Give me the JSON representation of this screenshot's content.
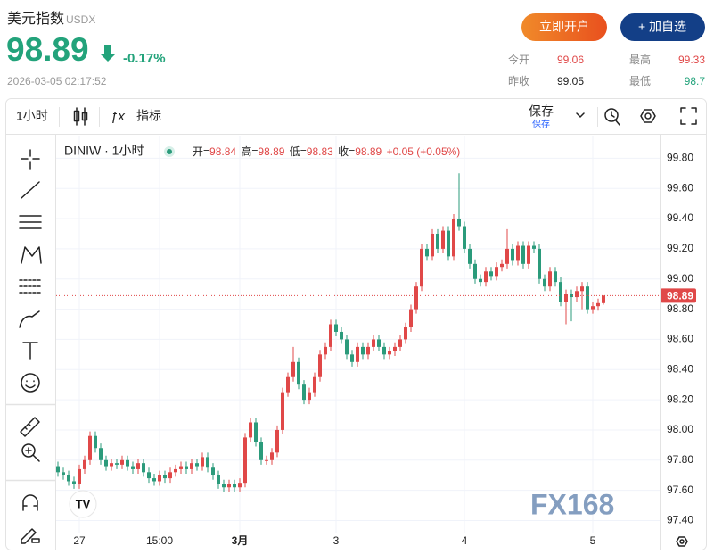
{
  "header": {
    "title": "美元指数",
    "code": "USDX",
    "price": 98.89,
    "change": "-0.17%",
    "time": "2026-03-05 02:17:52",
    "color": "#23a37b"
  },
  "buttons": [
    {
      "label": "立即开户"
    },
    {
      "label": "+ 加自选"
    }
  ],
  "stats": [
    {
      "label": "今开",
      "value": 99.06,
      "color": "#e04848"
    },
    {
      "label": "最高",
      "value": 99.33,
      "color": "#e04848"
    },
    {
      "label": "昨收",
      "value": 99.05,
      "color": "#222222"
    },
    {
      "label": "最低",
      "value": 98.7,
      "color": "#23a37b"
    }
  ],
  "toolbar": {
    "interval": "1小时",
    "indicators": "指标",
    "save": "保存",
    "save_sub": "保存"
  },
  "chart_data": {
    "type": "candlestick",
    "symbol": "DINIW · 1小时",
    "legend": {
      "open_label": "开=",
      "high_label": "高=",
      "low_label": "低=",
      "close_label": "收=",
      "change": "+0.05 (+0.05%)"
    },
    "up_color": "#e04848",
    "down_color": "#2b9b7b",
    "categories": [
      null,
      null,
      null,
      null,
      "27",
      null,
      null,
      null,
      null,
      null,
      null,
      null,
      null,
      null,
      null,
      null,
      null,
      null,
      null,
      "15:00",
      null,
      null,
      null,
      null,
      null,
      null,
      null,
      null,
      null,
      null,
      null,
      null,
      null,
      null,
      "3月",
      null,
      null,
      null,
      null,
      null,
      null,
      null,
      null,
      null,
      null,
      null,
      null,
      null,
      null,
      null,
      null,
      null,
      "3",
      null,
      null,
      null,
      null,
      null,
      null,
      null,
      null,
      null,
      null,
      null,
      null,
      null,
      null,
      null,
      null,
      null,
      null,
      null,
      null,
      null,
      null,
      null,
      "4",
      null,
      null,
      null,
      null,
      null,
      null,
      null,
      null,
      null,
      null,
      null,
      null,
      null,
      null,
      null,
      null,
      null,
      null,
      null,
      null,
      null,
      null,
      null,
      "5",
      null,
      null
    ],
    "open": [
      97.76,
      97.72,
      97.7,
      97.66,
      97.64,
      97.74,
      97.8,
      97.96,
      97.88,
      97.8,
      97.76,
      97.78,
      97.77,
      97.8,
      97.76,
      97.74,
      97.78,
      97.72,
      97.68,
      97.66,
      97.7,
      97.68,
      97.72,
      97.74,
      97.76,
      97.74,
      97.78,
      97.76,
      97.82,
      97.75,
      97.7,
      97.64,
      97.62,
      97.64,
      97.62,
      97.65,
      97.95,
      98.05,
      97.92,
      97.8,
      97.8,
      97.85,
      98.0,
      98.25,
      98.35,
      98.45,
      98.3,
      98.2,
      98.25,
      98.35,
      98.5,
      98.55,
      98.7,
      98.65,
      98.6,
      98.5,
      98.45,
      98.55,
      98.5,
      98.55,
      98.6,
      98.55,
      98.5,
      98.52,
      98.55,
      98.6,
      98.68,
      98.8,
      98.95,
      99.2,
      99.15,
      99.3,
      99.2,
      99.32,
      99.15,
      99.4,
      99.35,
      99.2,
      99.1,
      99.0,
      98.98,
      99.05,
      99.02,
      99.08,
      99.1,
      99.2,
      99.12,
      99.22,
      99.1,
      99.22,
      99.2,
      99.0,
      98.95,
      99.05,
      98.98,
      98.85,
      98.9,
      98.88,
      98.92,
      98.95,
      98.8,
      98.82,
      98.84
    ],
    "high": [
      97.79,
      97.75,
      97.73,
      97.69,
      97.77,
      97.83,
      97.99,
      97.99,
      97.91,
      97.83,
      97.81,
      97.81,
      97.83,
      97.83,
      97.79,
      97.81,
      97.81,
      97.75,
      97.71,
      97.73,
      97.73,
      97.75,
      97.77,
      97.79,
      97.79,
      97.81,
      97.81,
      97.85,
      97.85,
      97.78,
      97.73,
      97.67,
      97.67,
      97.67,
      97.68,
      97.98,
      98.08,
      98.08,
      97.95,
      97.83,
      97.88,
      98.03,
      98.28,
      98.38,
      98.55,
      98.48,
      98.33,
      98.28,
      98.38,
      98.53,
      98.58,
      98.73,
      98.73,
      98.68,
      98.63,
      98.53,
      98.58,
      98.58,
      98.58,
      98.63,
      98.63,
      98.58,
      98.55,
      98.58,
      98.63,
      98.71,
      98.83,
      98.98,
      99.23,
      99.23,
      99.33,
      99.33,
      99.35,
      99.35,
      99.43,
      99.7,
      99.38,
      99.23,
      99.13,
      99.03,
      99.08,
      99.08,
      99.11,
      99.13,
      99.33,
      99.23,
      99.25,
      99.25,
      99.25,
      99.25,
      99.23,
      99.03,
      99.08,
      99.08,
      99.01,
      98.93,
      98.93,
      98.95,
      98.98,
      98.98,
      98.85,
      98.87,
      98.89
    ],
    "low": [
      97.69,
      97.67,
      97.63,
      97.61,
      97.61,
      97.71,
      97.77,
      97.85,
      97.77,
      97.73,
      97.73,
      97.74,
      97.74,
      97.73,
      97.71,
      97.71,
      97.69,
      97.65,
      97.63,
      97.63,
      97.65,
      97.65,
      97.69,
      97.71,
      97.71,
      97.71,
      97.73,
      97.73,
      97.72,
      97.67,
      97.61,
      97.59,
      97.59,
      97.59,
      97.59,
      97.62,
      97.92,
      97.89,
      97.77,
      97.77,
      97.77,
      97.82,
      97.97,
      98.22,
      98.32,
      98.27,
      98.17,
      98.17,
      98.22,
      98.32,
      98.47,
      98.52,
      98.62,
      98.57,
      98.47,
      98.42,
      98.42,
      98.47,
      98.47,
      98.52,
      98.52,
      98.47,
      98.47,
      98.49,
      98.52,
      98.57,
      98.65,
      98.77,
      98.92,
      99.12,
      99.12,
      99.17,
      99.17,
      99.12,
      99.12,
      99.32,
      99.17,
      99.07,
      98.97,
      98.95,
      98.95,
      98.99,
      98.99,
      99.05,
      99.07,
      99.09,
      99.09,
      99.07,
      99.07,
      99.17,
      98.97,
      98.92,
      98.92,
      98.95,
      98.82,
      98.7,
      98.72,
      98.85,
      98.8,
      98.77,
      98.77,
      98.79,
      98.83
    ],
    "close": [
      97.72,
      97.7,
      97.66,
      97.64,
      97.74,
      97.8,
      97.96,
      97.88,
      97.8,
      97.76,
      97.78,
      97.77,
      97.8,
      97.76,
      97.74,
      97.78,
      97.72,
      97.68,
      97.66,
      97.7,
      97.68,
      97.72,
      97.74,
      97.76,
      97.74,
      97.78,
      97.76,
      97.82,
      97.75,
      97.7,
      97.64,
      97.62,
      97.64,
      97.62,
      97.65,
      97.95,
      98.05,
      97.92,
      97.8,
      97.8,
      97.85,
      98.0,
      98.25,
      98.35,
      98.45,
      98.3,
      98.2,
      98.25,
      98.35,
      98.5,
      98.55,
      98.7,
      98.65,
      98.6,
      98.5,
      98.45,
      98.55,
      98.5,
      98.55,
      98.6,
      98.55,
      98.5,
      98.52,
      98.55,
      98.6,
      98.68,
      98.8,
      98.95,
      99.2,
      99.15,
      99.3,
      99.2,
      99.32,
      99.15,
      99.4,
      99.35,
      99.2,
      99.1,
      99.0,
      98.98,
      99.05,
      99.02,
      99.08,
      99.1,
      99.2,
      99.12,
      99.22,
      99.1,
      99.22,
      99.2,
      99.0,
      98.95,
      99.05,
      98.98,
      98.85,
      98.9,
      98.88,
      98.92,
      98.95,
      98.8,
      98.82,
      98.84,
      98.89
    ],
    "ylim": [
      97.32,
      99.95
    ],
    "yticks": [
      {
        "value": 97.4,
        "label": "97.40"
      },
      {
        "value": 97.6,
        "label": "97.60"
      },
      {
        "value": 97.8,
        "label": "97.80"
      },
      {
        "value": 98.0,
        "label": "98.00"
      },
      {
        "value": 98.2,
        "label": "98.20"
      },
      {
        "value": 98.4,
        "label": "98.40"
      },
      {
        "value": 98.6,
        "label": "98.60"
      },
      {
        "value": 98.8,
        "label": "98.80"
      },
      {
        "value": 99.0,
        "label": "99.00"
      },
      {
        "value": 99.2,
        "label": "99.20"
      },
      {
        "value": 99.4,
        "label": "99.40"
      },
      {
        "value": 99.6,
        "label": "99.60"
      },
      {
        "value": 99.8,
        "label": "99.80"
      }
    ],
    "grid": true,
    "last_price": 98.89,
    "watermark": "FX168"
  }
}
